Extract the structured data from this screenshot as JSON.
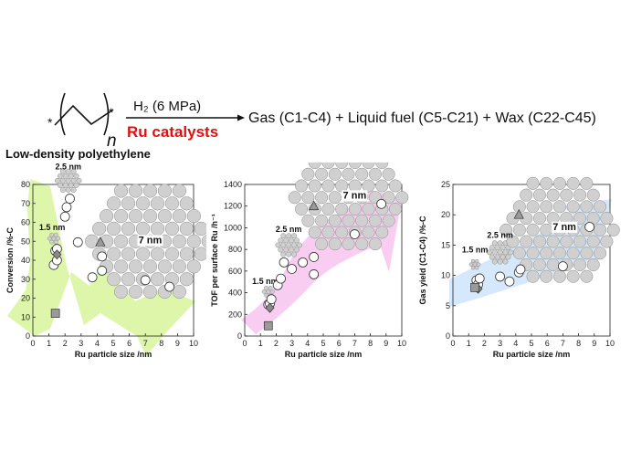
{
  "scheme": {
    "reagent": "H₂ (6 MPa)",
    "catalyst": "Ru catalysts",
    "products": "Gas (C1-C4) + Liquid fuel (C5-C21) + Wax (C22-C45)",
    "subscript": "n",
    "end_marker": "*",
    "polymer_name": "Low-density polyethylene",
    "catalyst_color": "#e01010"
  },
  "chart_data": [
    {
      "type": "scatter",
      "xlabel": "Ru particle size /nm",
      "ylabel": "Conversion /%-C",
      "xlim": [
        0,
        10
      ],
      "ylim": [
        0,
        80
      ],
      "xticks": [
        0,
        1,
        2,
        3,
        4,
        5,
        6,
        7,
        8,
        9,
        10
      ],
      "yticks": [
        0,
        10,
        20,
        30,
        40,
        50,
        60,
        70,
        80
      ],
      "arrow_color": "#d9f5a0",
      "points": [
        {
          "x": 1.3,
          "y": 37.5,
          "marker": "circle"
        },
        {
          "x": 1.4,
          "y": 45,
          "marker": "circle"
        },
        {
          "x": 1.5,
          "y": 40,
          "marker": "circle"
        },
        {
          "x": 1.5,
          "y": 46,
          "marker": "circle"
        },
        {
          "x": 2.0,
          "y": 63,
          "marker": "circle"
        },
        {
          "x": 2.1,
          "y": 68,
          "marker": "circle"
        },
        {
          "x": 2.3,
          "y": 72.5,
          "marker": "circle"
        },
        {
          "x": 2.8,
          "y": 49.5,
          "marker": "circle"
        },
        {
          "x": 3.7,
          "y": 31,
          "marker": "circle"
        },
        {
          "x": 4.3,
          "y": 34.5,
          "marker": "circle"
        },
        {
          "x": 4.3,
          "y": 42,
          "marker": "circle"
        },
        {
          "x": 7.0,
          "y": 29.5,
          "marker": "circle"
        },
        {
          "x": 8.5,
          "y": 26,
          "marker": "circle"
        },
        {
          "x": 1.5,
          "y": 43,
          "marker": "diamond"
        },
        {
          "x": 4.2,
          "y": 49.5,
          "marker": "triangle"
        },
        {
          "x": 1.4,
          "y": 12,
          "marker": "square"
        }
      ],
      "size_labels": [
        {
          "text": "1.5 nm",
          "x": 1.2,
          "y": 56
        },
        {
          "text": "2.5 nm",
          "x": 2.2,
          "y": 88
        },
        {
          "text": "7 nm",
          "x": 7.3,
          "y": 49
        }
      ],
      "clusters": [
        {
          "x": 1.3,
          "y": 51.5,
          "scale": 0.55
        },
        {
          "x": 2.2,
          "y": 82,
          "scale": 0.7
        },
        {
          "x": 7.3,
          "y": 50,
          "scale": 1.9
        }
      ]
    },
    {
      "type": "scatter",
      "xlabel": "Ru particle size /nm",
      "ylabel": "TOF per surface Ru /h⁻¹",
      "xlim": [
        0,
        10
      ],
      "ylim": [
        0,
        1400
      ],
      "xticks": [
        0,
        1,
        2,
        3,
        4,
        5,
        6,
        7,
        8,
        9,
        10
      ],
      "yticks": [
        0,
        200,
        400,
        600,
        800,
        1000,
        1200,
        1400
      ],
      "arrow_color": "#f8c6f0",
      "points": [
        {
          "x": 1.5,
          "y": 290,
          "marker": "circle"
        },
        {
          "x": 1.6,
          "y": 300,
          "marker": "circle"
        },
        {
          "x": 1.7,
          "y": 340,
          "marker": "circle"
        },
        {
          "x": 2.1,
          "y": 470,
          "marker": "circle"
        },
        {
          "x": 2.3,
          "y": 530,
          "marker": "circle"
        },
        {
          "x": 2.5,
          "y": 680,
          "marker": "circle"
        },
        {
          "x": 3.0,
          "y": 620,
          "marker": "circle"
        },
        {
          "x": 3.7,
          "y": 680,
          "marker": "circle"
        },
        {
          "x": 4.4,
          "y": 570,
          "marker": "circle"
        },
        {
          "x": 4.4,
          "y": 730,
          "marker": "circle"
        },
        {
          "x": 7.0,
          "y": 940,
          "marker": "circle"
        },
        {
          "x": 8.7,
          "y": 1220,
          "marker": "circle"
        },
        {
          "x": 1.6,
          "y": 260,
          "marker": "diamond"
        },
        {
          "x": 4.4,
          "y": 1200,
          "marker": "triangle"
        },
        {
          "x": 1.5,
          "y": 95,
          "marker": "square"
        }
      ],
      "size_labels": [
        {
          "text": "1.5 nm",
          "x": 1.3,
          "y": 480
        },
        {
          "text": "2.5 nm",
          "x": 2.8,
          "y": 960
        },
        {
          "text": "7 nm",
          "x": 7.0,
          "y": 1270
        }
      ],
      "clusters": [
        {
          "x": 1.5,
          "y": 410,
          "scale": 0.55
        },
        {
          "x": 2.8,
          "y": 840,
          "scale": 0.7
        },
        {
          "x": 6.6,
          "y": 1280,
          "scale": 1.75
        }
      ]
    },
    {
      "type": "scatter",
      "xlabel": "Ru particle size /nm",
      "ylabel": "Gas yield (C1-C4) /%-C",
      "xlim": [
        0,
        10
      ],
      "ylim": [
        0,
        25
      ],
      "xticks": [
        0,
        1,
        2,
        3,
        4,
        5,
        6,
        7,
        8,
        9,
        10
      ],
      "yticks": [
        0,
        5,
        10,
        15,
        20,
        25
      ],
      "arrow_color": "#d2e6fb",
      "points": [
        {
          "x": 1.5,
          "y": 9.2,
          "marker": "circle"
        },
        {
          "x": 1.6,
          "y": 8.5,
          "marker": "circle"
        },
        {
          "x": 1.7,
          "y": 9.5,
          "marker": "circle"
        },
        {
          "x": 3.0,
          "y": 9.8,
          "marker": "circle"
        },
        {
          "x": 3.6,
          "y": 9.0,
          "marker": "circle"
        },
        {
          "x": 4.2,
          "y": 10.5,
          "marker": "circle"
        },
        {
          "x": 4.3,
          "y": 11.0,
          "marker": "circle"
        },
        {
          "x": 7.0,
          "y": 11.5,
          "marker": "circle"
        },
        {
          "x": 8.7,
          "y": 18.0,
          "marker": "circle"
        },
        {
          "x": 1.6,
          "y": 7.8,
          "marker": "diamond"
        },
        {
          "x": 4.2,
          "y": 20.0,
          "marker": "triangle"
        },
        {
          "x": 1.4,
          "y": 8.0,
          "marker": "square"
        }
      ],
      "size_labels": [
        {
          "text": "1.5 nm",
          "x": 1.4,
          "y": 13.8
        },
        {
          "text": "2.5 nm",
          "x": 3.0,
          "y": 16.2
        },
        {
          "text": "7 nm",
          "x": 7.1,
          "y": 17.5
        }
      ],
      "clusters": [
        {
          "x": 1.4,
          "y": 11.8,
          "scale": 0.5
        },
        {
          "x": 3.0,
          "y": 13.8,
          "scale": 0.7
        },
        {
          "x": 6.8,
          "y": 17.5,
          "scale": 1.75
        }
      ]
    }
  ]
}
